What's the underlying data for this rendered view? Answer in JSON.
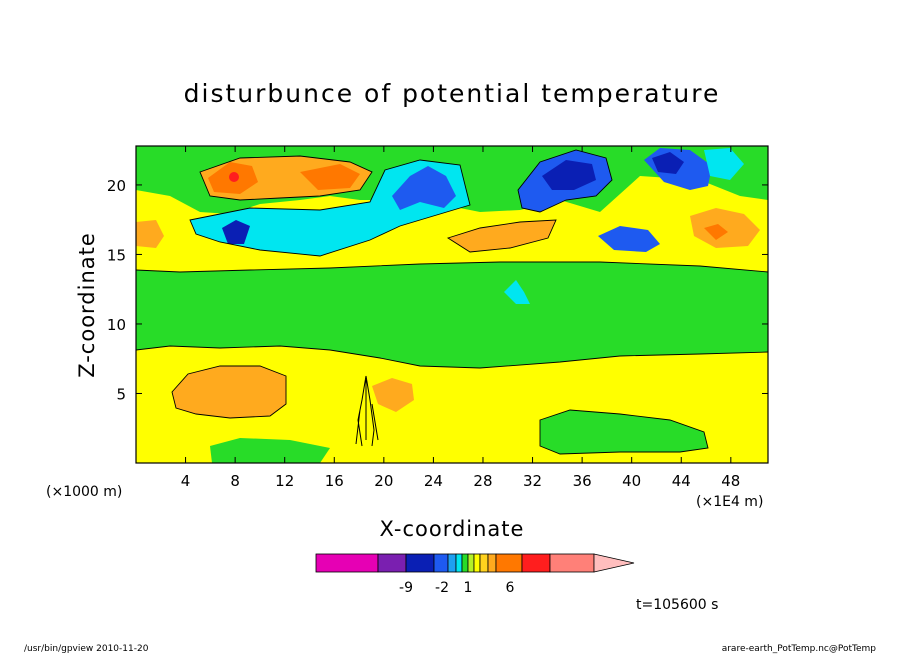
{
  "chart_data": {
    "type": "heatmap",
    "title": "disturbunce of potential temperature",
    "xlabel": "X-coordinate",
    "ylabel": "Z-coordinate",
    "x_unit_left": "(×1000 m)",
    "x_unit_right": "(×1E4 m)",
    "x_ticks": [
      "4",
      "8",
      "12",
      "16",
      "20",
      "24",
      "28",
      "32",
      "36",
      "40",
      "44",
      "48"
    ],
    "x_tick_values": [
      4,
      8,
      12,
      16,
      20,
      24,
      28,
      32,
      36,
      40,
      44,
      48
    ],
    "xlim": [
      0,
      51
    ],
    "y_ticks": [
      "5",
      "10",
      "15",
      "20"
    ],
    "y_tick_values": [
      5,
      10,
      15,
      20
    ],
    "ylim": [
      0,
      22.8
    ],
    "colorbar": {
      "colors": [
        "#e600b4",
        "#7a1fb0",
        "#0a1fb4",
        "#1e5af0",
        "#1ea0f0",
        "#00e6f0",
        "#28dc28",
        "#b4f028",
        "#ffff00",
        "#ffd21e",
        "#ffaa1e",
        "#ff7800",
        "#ff1e1e",
        "#ff8078",
        "#ffbebe"
      ],
      "labels": [
        "-9",
        "-2",
        "1",
        "6"
      ]
    },
    "time_label": "t=105600 s",
    "footer_left": "/usr/bin/gpview  2010-11-20",
    "footer_right": "arare-earth_PotTemp.nc@PotTemp"
  }
}
